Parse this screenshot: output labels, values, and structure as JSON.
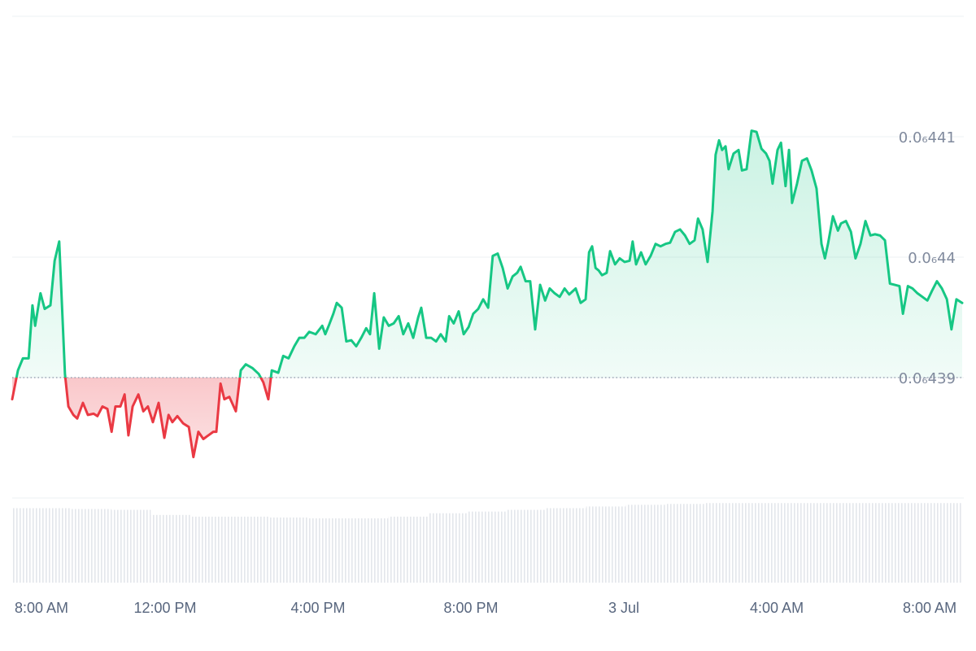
{
  "chart_data": {
    "type": "line",
    "x": [
      0,
      0.15,
      0.28,
      0.43,
      0.53,
      0.6,
      0.74,
      0.85,
      1,
      1.11,
      1.23,
      1.38,
      1.47,
      1.6,
      1.7,
      1.85,
      1.98,
      2.13,
      2.23,
      2.36,
      2.49,
      2.6,
      2.7,
      2.83,
      2.94,
      3.04,
      3.15,
      3.3,
      3.43,
      3.55,
      3.68,
      3.83,
      3.98,
      4.09,
      4.19,
      4.32,
      4.47,
      4.62,
      4.74,
      4.87,
      5,
      5.13,
      5.26,
      5.34,
      5.45,
      5.55,
      5.68,
      5.85,
      5.98,
      6.11,
      6.28,
      6.45,
      6.57,
      6.7,
      6.79,
      6.96,
      7.09,
      7.23,
      7.38,
      7.51,
      7.64,
      7.77,
      7.94,
      8.11,
      8.19,
      8.28,
      8.4,
      8.49,
      8.62,
      8.74,
      8.87,
      9,
      9.13,
      9.26,
      9.36,
      9.47,
      9.6,
      9.72,
      9.85,
      9.98,
      10.11,
      10.23,
      10.36,
      10.49,
      10.62,
      10.7,
      10.83,
      10.96,
      11.09,
      11.21,
      11.34,
      11.43,
      11.55,
      11.68,
      11.81,
      11.94,
      12.06,
      12.19,
      12.32,
      12.45,
      12.57,
      12.7,
      12.83,
      12.96,
      13.09,
      13.21,
      13.3,
      13.43,
      13.55,
      13.68,
      13.81,
      13.94,
      14.06,
      14.19,
      14.32,
      14.45,
      14.57,
      14.74,
      14.87,
      15,
      15.09,
      15.17,
      15.26,
      15.34,
      15.43,
      15.55,
      15.64,
      15.77,
      15.89,
      16.02,
      16.15,
      16.23,
      16.32,
      16.45,
      16.57,
      16.7,
      16.83,
      16.96,
      17.09,
      17.21,
      17.34,
      17.47,
      17.6,
      17.72,
      17.85,
      17.94,
      18.06,
      18.19,
      18.32,
      18.4,
      18.49,
      18.57,
      18.66,
      18.74,
      18.87,
      19,
      19.09,
      19.21,
      19.34,
      19.47,
      19.6,
      19.72,
      19.81,
      19.89,
      20.02,
      20.11,
      20.23,
      20.32,
      20.4,
      20.53,
      20.66,
      20.79,
      20.91,
      21.04,
      21.17,
      21.26,
      21.34,
      21.47,
      21.6,
      21.68,
      21.81,
      21.94,
      22.06,
      22.19,
      22.32,
      22.45,
      22.57,
      22.7,
      22.83,
      22.96,
      23.09,
      23.21,
      23.3,
      23.43,
      23.55,
      23.68,
      23.81,
      23.94,
      24.06,
      24.19,
      24.32,
      24.45,
      24.57,
      24.7,
      24.85
    ],
    "values": [
      4.3882e-08,
      4.3906e-08,
      4.3916e-08,
      4.3916e-08,
      4.396e-08,
      4.3943e-08,
      4.397e-08,
      4.3957e-08,
      4.396e-08,
      4.3997e-08,
      4.4013e-08,
      4.3903e-08,
      4.3876e-08,
      4.3869e-08,
      4.3866e-08,
      4.3879e-08,
      4.3869e-08,
      4.387e-08,
      4.3868e-08,
      4.3876e-08,
      4.3874e-08,
      4.3855e-08,
      4.3876e-08,
      4.3876e-08,
      4.3886e-08,
      4.3852e-08,
      4.3876e-08,
      4.3886e-08,
      4.3872e-08,
      4.3876e-08,
      4.3863e-08,
      4.3879e-08,
      4.385e-08,
      4.3869e-08,
      4.3863e-08,
      4.3868e-08,
      4.3862e-08,
      4.3859e-08,
      4.3834e-08,
      4.3855e-08,
      4.3849e-08,
      4.3852e-08,
      4.3855e-08,
      4.3855e-08,
      4.3895e-08,
      4.3882e-08,
      4.3884e-08,
      4.3872e-08,
      4.3906e-08,
      4.3911e-08,
      4.3908e-08,
      4.3903e-08,
      4.3896e-08,
      4.3882e-08,
      4.3906e-08,
      4.3904e-08,
      4.3918e-08,
      4.3916e-08,
      4.3926e-08,
      4.3933e-08,
      4.3933e-08,
      4.3938e-08,
      4.3936e-08,
      4.3943e-08,
      4.3936e-08,
      4.3943e-08,
      4.3953e-08,
      4.3962e-08,
      4.3958e-08,
      4.393e-08,
      4.3931e-08,
      4.3926e-08,
      4.3933e-08,
      4.3941e-08,
      4.3936e-08,
      4.397e-08,
      4.3924e-08,
      4.395e-08,
      4.3943e-08,
      4.3945e-08,
      4.3951e-08,
      4.3936e-08,
      4.3945e-08,
      4.3933e-08,
      4.395e-08,
      4.3958e-08,
      4.3933e-08,
      4.3933e-08,
      4.393e-08,
      4.3936e-08,
      4.393e-08,
      4.3951e-08,
      4.3945e-08,
      4.3955e-08,
      4.3936e-08,
      4.3942e-08,
      4.3953e-08,
      4.3957e-08,
      4.3965e-08,
      4.3958e-08,
      4.4001e-08,
      4.4003e-08,
      4.3991e-08,
      4.3974e-08,
      4.3984e-08,
      4.3987e-08,
      4.3992e-08,
      4.398e-08,
      4.398e-08,
      4.394e-08,
      4.3977e-08,
      4.3964e-08,
      4.3974e-08,
      4.397e-08,
      4.3967e-08,
      4.3974e-08,
      4.3969e-08,
      4.3974e-08,
      4.3962e-08,
      4.3965e-08,
      4.4004e-08,
      4.4009e-08,
      4.3991e-08,
      4.3989e-08,
      4.3985e-08,
      4.3987e-08,
      4.4005e-08,
      4.3994e-08,
      4.3999e-08,
      4.3996e-08,
      4.3997e-08,
      4.4013e-08,
      4.3994e-08,
      4.4004e-08,
      4.3994e-08,
      4.4001e-08,
      4.4011e-08,
      4.4009e-08,
      4.4011e-08,
      4.4012e-08,
      4.4021e-08,
      4.4023e-08,
      4.4018e-08,
      4.4011e-08,
      4.4014e-08,
      4.4032e-08,
      4.4023e-08,
      4.3996e-08,
      4.4038e-08,
      4.4085e-08,
      4.4097e-08,
      4.4089e-08,
      4.4092e-08,
      4.4073e-08,
      4.4086e-08,
      4.4089e-08,
      4.4072e-08,
      4.4073e-08,
      4.4105e-08,
      4.4104e-08,
      4.409e-08,
      4.4086e-08,
      4.408e-08,
      4.4061e-08,
      4.4089e-08,
      4.4095e-08,
      4.4059e-08,
      4.4089e-08,
      4.4045e-08,
      4.4061e-08,
      4.408e-08,
      4.4082e-08,
      4.4072e-08,
      4.4057e-08,
      4.4011e-08,
      4.3999e-08,
      4.4011e-08,
      4.4034e-08,
      4.4022e-08,
      4.4028e-08,
      4.403e-08,
      4.4021e-08,
      4.3999e-08,
      4.4011e-08,
      4.403e-08,
      4.4018e-08,
      4.4019e-08,
      4.4018e-08,
      4.4014e-08,
      4.3978e-08,
      4.3977e-08,
      4.3976e-08,
      4.3953e-08,
      4.3976e-08,
      4.3974e-08,
      4.397e-08,
      4.3967e-08,
      4.3964e-08,
      4.3972e-08,
      4.398e-08,
      4.3974e-08,
      4.3965e-08,
      4.394e-08,
      4.3965e-08,
      4.3962e-08
    ],
    "color": "#16c784",
    "down_color": "#ea3943",
    "baseline": 4.39e-08,
    "xlim": [
      0,
      24.85
    ],
    "xticks": [
      {
        "value": 0,
        "label": "8:00 AM"
      },
      {
        "value": 4,
        "label": "12:00 PM"
      },
      {
        "value": 8,
        "label": "4:00 PM"
      },
      {
        "value": 12,
        "label": "8:00 PM"
      },
      {
        "value": 16,
        "label": "3 Jul"
      },
      {
        "value": 20,
        "label": "4:00 AM"
      },
      {
        "value": 24,
        "label": "8:00 AM"
      }
    ],
    "ylim": [
      4.38e-08,
      4.42e-08
    ],
    "yticks": [
      {
        "value": 4.41e-08,
        "label": "0.0₆441"
      },
      {
        "value": 4.4e-08,
        "label": "0.0₆44"
      },
      {
        "value": 4.39e-08,
        "label": "0.0₆439"
      }
    ],
    "grid": true,
    "volume": {
      "values": [
        88,
        88,
        87,
        86,
        80,
        78,
        78,
        77,
        76,
        76,
        78,
        82,
        84,
        86,
        88,
        90,
        92,
        93,
        94,
        94,
        94,
        94,
        94,
        94,
        94
      ],
      "ylim": [
        0,
        100
      ],
      "color": "#e3e6eb"
    }
  }
}
